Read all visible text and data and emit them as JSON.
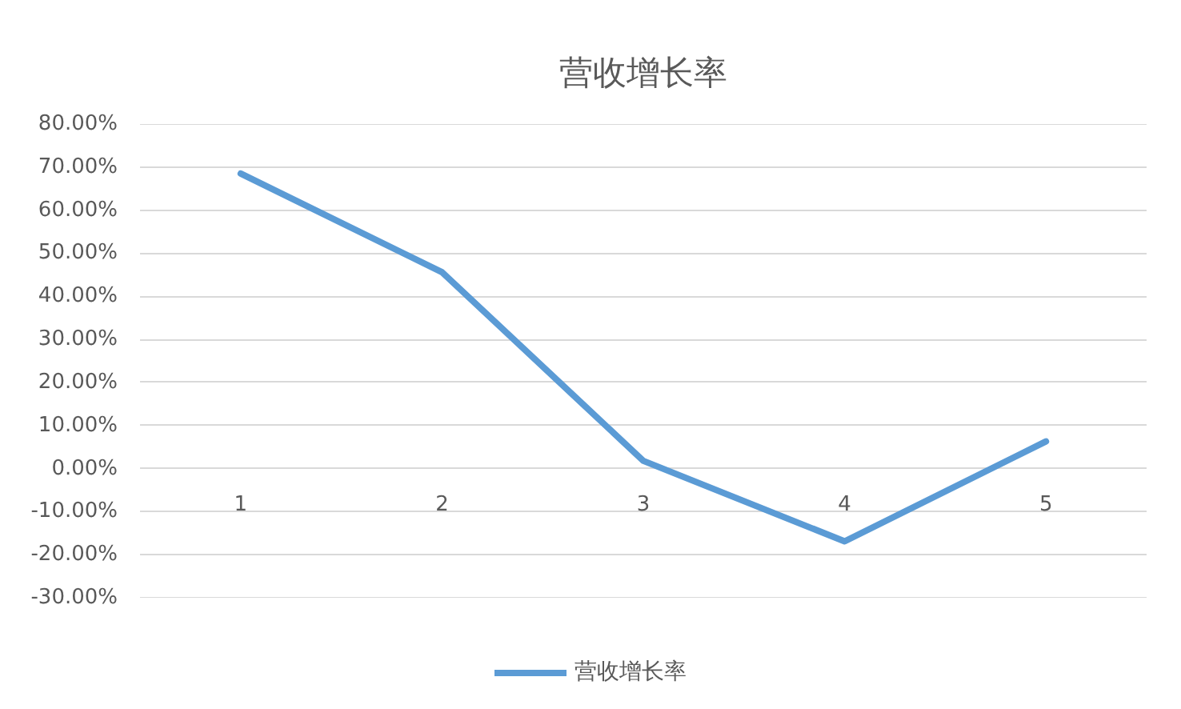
{
  "chart_data": {
    "type": "line",
    "title": "营收增长率",
    "categories": [
      "1",
      "2",
      "3",
      "4",
      "5"
    ],
    "series": [
      {
        "name": "营收增长率",
        "color": "#5b9bd5",
        "values": [
          68.5,
          45.6,
          1.8,
          -16.9,
          6.3
        ]
      }
    ],
    "ylim": [
      -30,
      80
    ],
    "yticks": [
      {
        "value": -30,
        "label": "-30.00%"
      },
      {
        "value": -20,
        "label": "-20.00%"
      },
      {
        "value": -10,
        "label": "-10.00%"
      },
      {
        "value": 0,
        "label": "0.00%"
      },
      {
        "value": 10,
        "label": "10.00%"
      },
      {
        "value": 20,
        "label": "20.00%"
      },
      {
        "value": 30,
        "label": "30.00%"
      },
      {
        "value": 40,
        "label": "40.00%"
      },
      {
        "value": 50,
        "label": "50.00%"
      },
      {
        "value": 60,
        "label": "60.00%"
      },
      {
        "value": 70,
        "label": "70.00%"
      },
      {
        "value": 80,
        "label": "80.00%"
      }
    ],
    "grid": "y",
    "legend": "bottom"
  }
}
